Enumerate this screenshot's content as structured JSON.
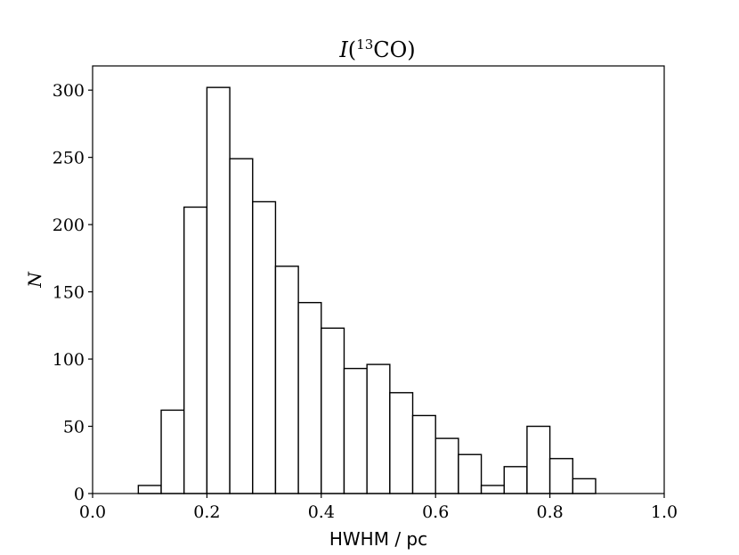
{
  "chart_data": {
    "type": "bar",
    "title": {
      "main": "I",
      "open": "(",
      "sup": "13",
      "rest": "CO)"
    },
    "xlabel": "HWHM / pc",
    "ylabel": "N",
    "xlim": [
      0.0,
      1.0
    ],
    "ylim": [
      0,
      318
    ],
    "xticks": [
      "0.0",
      "0.2",
      "0.4",
      "0.6",
      "0.8",
      "1.0"
    ],
    "xtick_values": [
      0.0,
      0.2,
      0.4,
      0.6,
      0.8,
      1.0
    ],
    "yticks": [
      "0",
      "50",
      "100",
      "150",
      "200",
      "250",
      "300"
    ],
    "ytick_values": [
      0,
      50,
      100,
      150,
      200,
      250,
      300
    ],
    "bin_edges": [
      0.08,
      0.12,
      0.16,
      0.2,
      0.24,
      0.28,
      0.32,
      0.36,
      0.4,
      0.44,
      0.48,
      0.52,
      0.56,
      0.6,
      0.64,
      0.68,
      0.72,
      0.76,
      0.8,
      0.84,
      0.88
    ],
    "values": [
      6,
      62,
      213,
      302,
      249,
      217,
      169,
      142,
      123,
      93,
      96,
      75,
      58,
      41,
      29,
      6,
      20,
      50,
      26,
      11
    ],
    "grid": false,
    "bar_fill": "#ffffff",
    "bar_edge": "#000000"
  }
}
